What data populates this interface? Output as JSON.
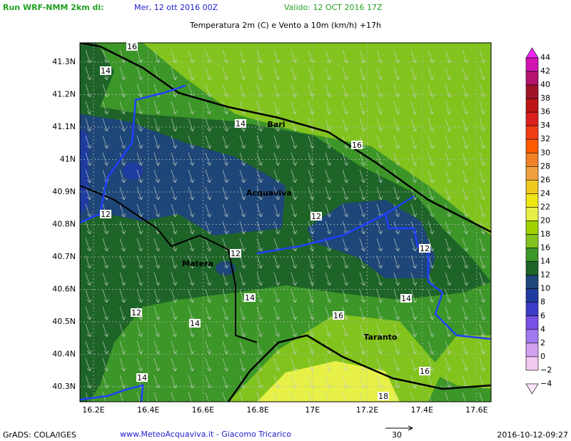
{
  "header": {
    "run_label": "Run WRF-NMM 2km di:",
    "run_date": "Mer, 12 ott 2016 00Z",
    "valid": "Valido: 12 OCT 2016 17Z",
    "title": "Temperatura 2m (C) e Vento a 10m (km/h) +17h"
  },
  "map": {
    "lat_labels": [
      "41.3N",
      "41.2N",
      "41.1N",
      "41N",
      "40.9N",
      "40.8N",
      "40.7N",
      "40.6N",
      "40.5N",
      "40.4N",
      "40.3N"
    ],
    "lon_labels": [
      "16.2E",
      "16.4E",
      "16.6E",
      "16.8E",
      "17E",
      "17.2E",
      "17.4E",
      "17.6E"
    ],
    "contour_labels": [
      "16",
      "14",
      "14",
      "16",
      "12",
      "12",
      "12",
      "12",
      "14",
      "14",
      "12",
      "14",
      "16",
      "16",
      "14",
      "18"
    ],
    "cities": [
      "Bari",
      "Acquaviva",
      "Matera",
      "Taranto"
    ]
  },
  "colorbar": {
    "labels": [
      "44",
      "42",
      "40",
      "38",
      "36",
      "34",
      "32",
      "30",
      "28",
      "26",
      "24",
      "22",
      "20",
      "18",
      "16",
      "14",
      "12",
      "10",
      "8",
      "6",
      "4",
      "2",
      "0",
      "−2",
      "−4"
    ],
    "colors": [
      "#f028f0",
      "#d214b4",
      "#b4146e",
      "#a01428",
      "#be1414",
      "#dc1e1e",
      "#f03c14",
      "#ff5a00",
      "#f08228",
      "#f0a040",
      "#f0c81e",
      "#f0e614",
      "#e6f046",
      "#a0d200",
      "#82c31e",
      "#3c9628",
      "#1e6428",
      "#1e4678",
      "#1e3ca0",
      "#3c3cc8",
      "#7850e6",
      "#a078f0",
      "#d2a0f0",
      "#f0c8f0",
      "#fae6fa"
    ]
  },
  "footer": {
    "grads": "GrADS: COLA/IGES",
    "credit": "www.MeteoAcquaviva.it - Giacomo Tricarico",
    "arrow_label": "30",
    "timestamp": "2016-10-12-09:27"
  }
}
